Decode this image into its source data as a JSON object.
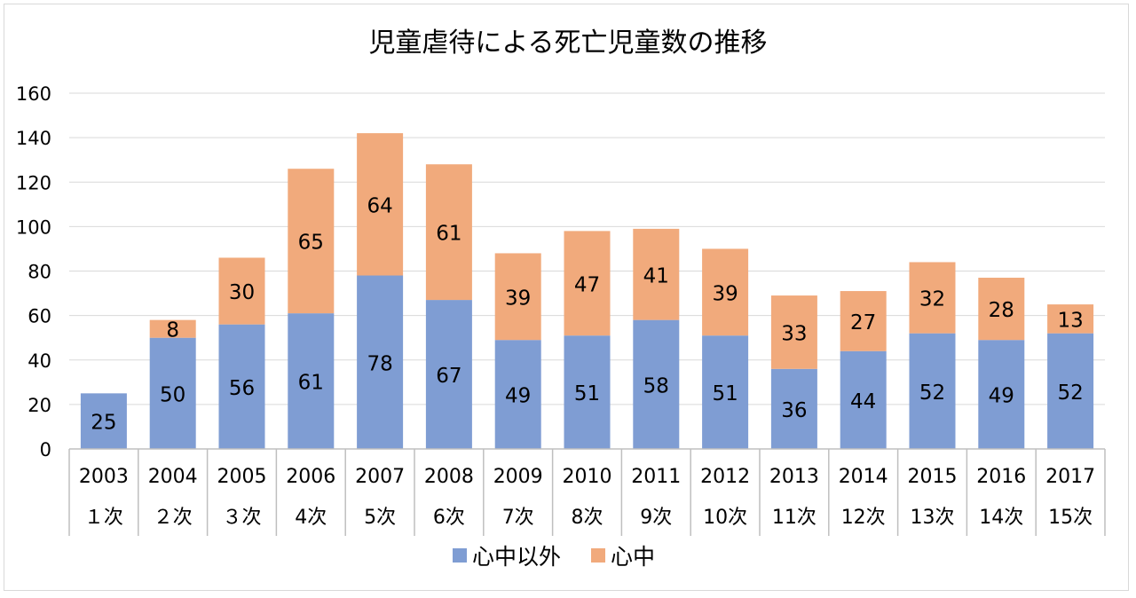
{
  "chart_data": {
    "type": "bar",
    "stacked": true,
    "title": "児童虐待による死亡児童数の推移",
    "xlabel": "",
    "ylabel": "",
    "ylim": [
      0,
      160
    ],
    "yticks": [
      0,
      20,
      40,
      60,
      80,
      100,
      120,
      140,
      160
    ],
    "grid": true,
    "legend_position": "bottom",
    "categories": [
      "2003",
      "2004",
      "2005",
      "2006",
      "2007",
      "2008",
      "2009",
      "2010",
      "2011",
      "2012",
      "2013",
      "2014",
      "2015",
      "2016",
      "2017"
    ],
    "subcategories": [
      "１次",
      "２次",
      "３次",
      "4次",
      "5次",
      "6次",
      "7次",
      "8次",
      "9次",
      "10次",
      "11次",
      "12次",
      "13次",
      "14次",
      "15次"
    ],
    "series": [
      {
        "name": "心中以外",
        "color": "#7f9dd3",
        "values": [
          25,
          50,
          56,
          61,
          78,
          67,
          49,
          51,
          58,
          51,
          36,
          44,
          52,
          49,
          52
        ]
      },
      {
        "name": "心中",
        "color": "#f1aa7c",
        "values": [
          0,
          8,
          30,
          65,
          64,
          61,
          39,
          47,
          41,
          39,
          33,
          27,
          32,
          28,
          13
        ]
      }
    ]
  }
}
